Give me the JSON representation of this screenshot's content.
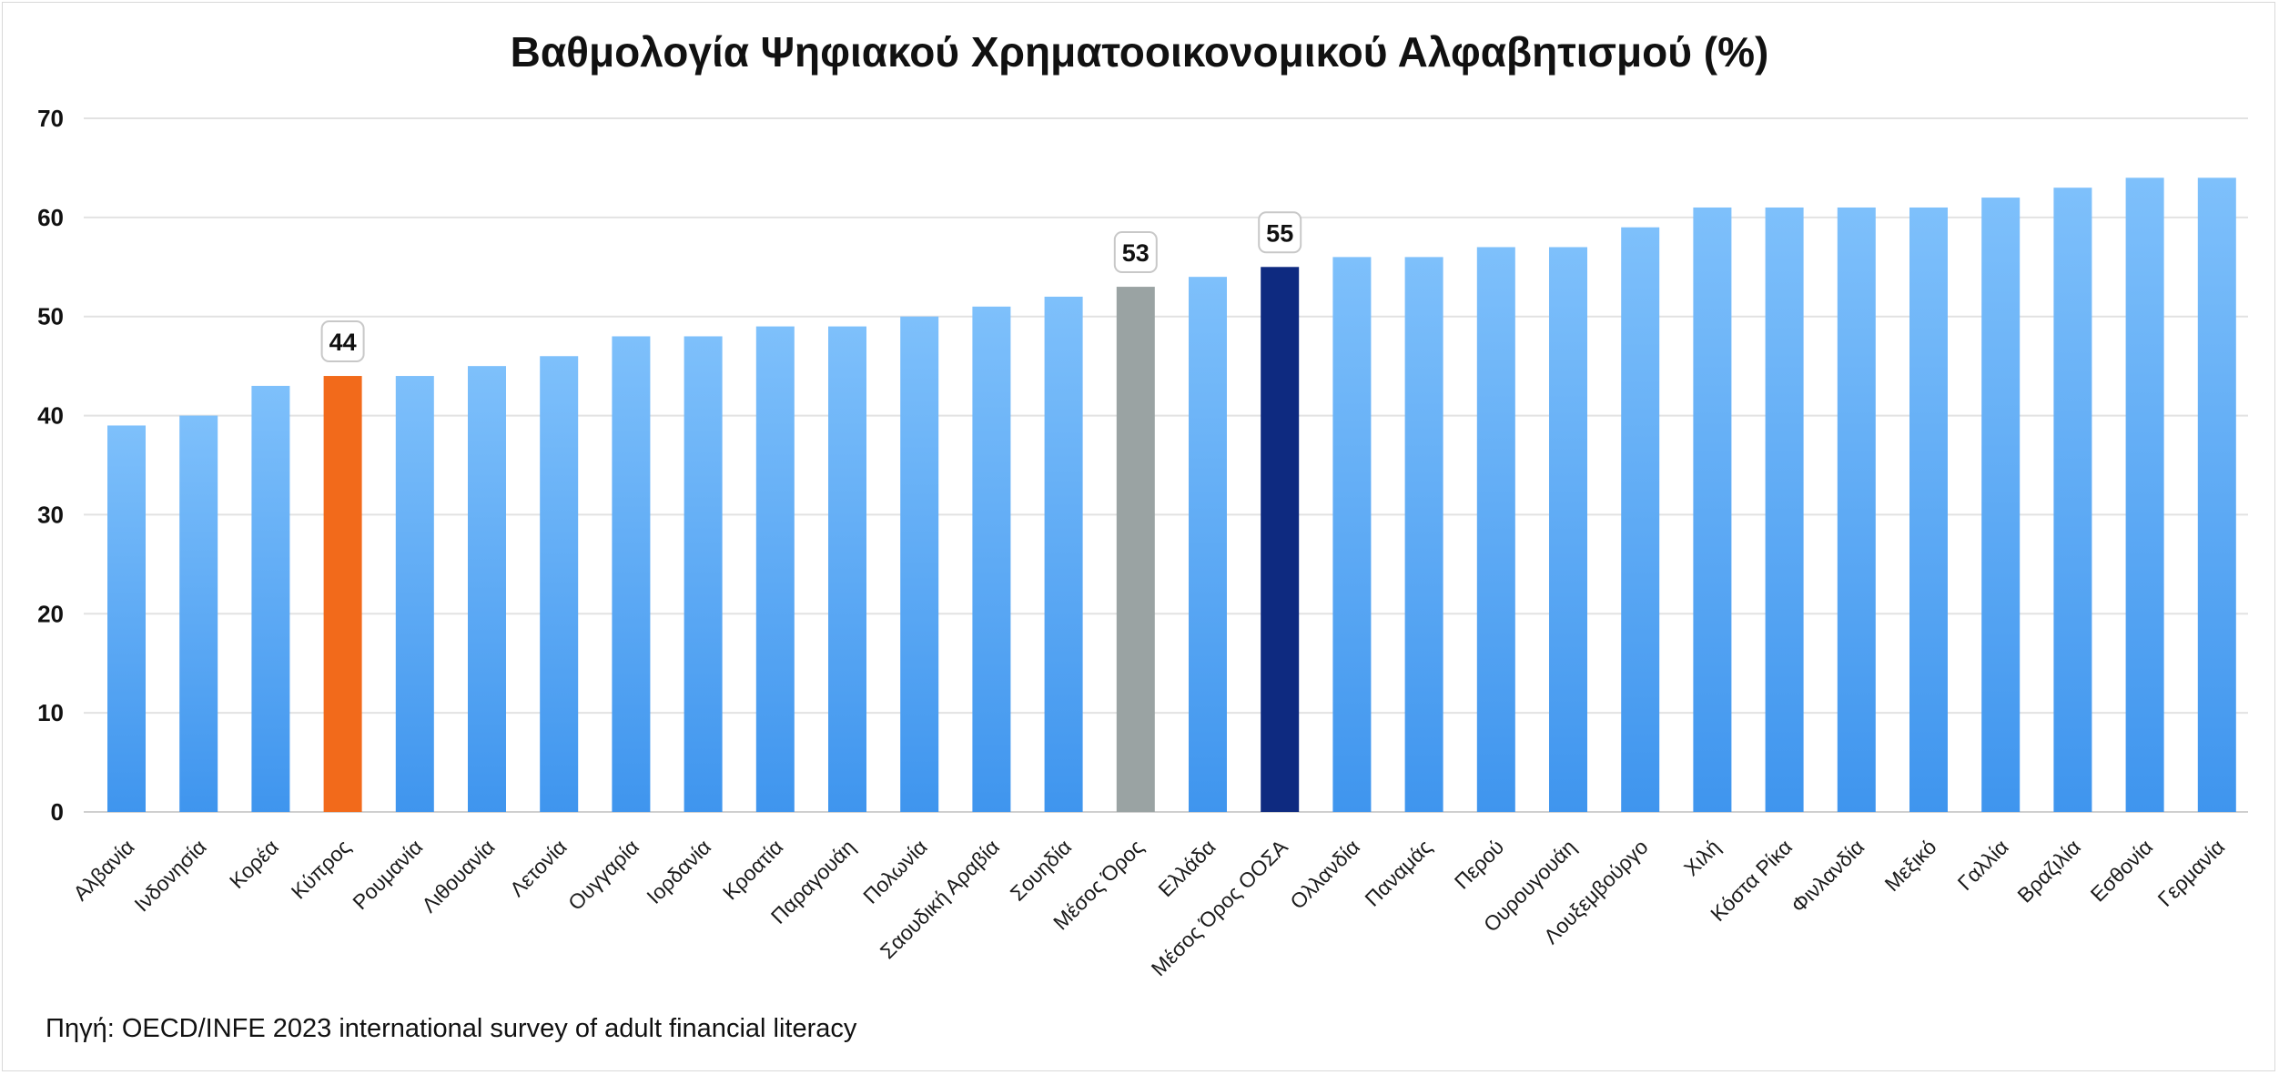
{
  "chart_data": {
    "type": "bar",
    "title": "Βαθμολογία Ψηφιακού Χρηματοοικονομικού Αλφαβητισμού (%)",
    "xlabel": "",
    "ylabel": "",
    "ylim": [
      0,
      70
    ],
    "yticks": [
      0,
      10,
      20,
      30,
      40,
      50,
      60,
      70
    ],
    "grid": true,
    "categories": [
      "Αλβανία",
      "Ινδονησία",
      "Κορέα",
      "Κύπρος",
      "Ρουμανία",
      "Λιθουανία",
      "Λετονία",
      "Ουγγαρία",
      "Ιορδανία",
      "Κροατία",
      "Παραγουάη",
      "Πολωνία",
      "Σαουδική Αραβία",
      "Σουηδία",
      "Μέσος Όρος",
      "Ελλάδα",
      "Μέσος Όρος ΟΟΣΑ",
      "Ολλανδία",
      "Παναμάς",
      "Περού",
      "Ουρουγουάη",
      "Λουξεμβούργο",
      "Χιλή",
      "Κόστα Ρίκα",
      "Φινλανδία",
      "Μεξικό",
      "Γαλλία",
      "Βραζιλία",
      "Εσθονία",
      "Γερμανία"
    ],
    "values": [
      39,
      40,
      43,
      44,
      44,
      45,
      46,
      48,
      48,
      49,
      49,
      50,
      51,
      52,
      53,
      54,
      55,
      56,
      56,
      57,
      57,
      59,
      61,
      61,
      61,
      61,
      62,
      63,
      64,
      64
    ],
    "data_labels": [
      {
        "category": "Κύπρος",
        "text": "44"
      },
      {
        "category": "Μέσος Όρος",
        "text": "53"
      },
      {
        "category": "Μέσος Όρος ΟΟΣΑ",
        "text": "55"
      }
    ],
    "colors": {
      "default": "#64acf2",
      "highlight_cyprus": "#f26a1b",
      "highlight_average": "#9aa3a3",
      "highlight_oecd": "#0e2a80"
    },
    "highlight": {
      "Κύπρος": "highlight_cyprus",
      "Μέσος Όρος": "highlight_average",
      "Μέσος Όρος ΟΟΣΑ": "highlight_oecd"
    }
  },
  "source": "Πηγή: OECD/INFE 2023 international survey of adult financial literacy"
}
